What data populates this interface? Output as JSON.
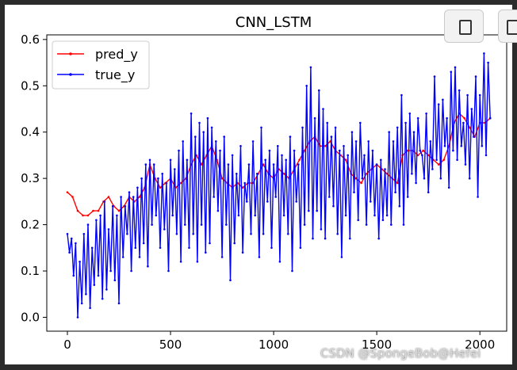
{
  "watermark": "CSDN @SpongeBob@Hefei",
  "chart_data": {
    "type": "line",
    "title": "CNN_LSTM",
    "xlabel": "",
    "ylabel": "",
    "xlim": [
      -100,
      2130
    ],
    "ylim": [
      -0.03,
      0.61
    ],
    "xticks": [
      0,
      500,
      1000,
      1500,
      2000
    ],
    "yticks": [
      0.0,
      0.1,
      0.2,
      0.3,
      0.4,
      0.5,
      0.6
    ],
    "grid": false,
    "legend": "top-left",
    "series": [
      {
        "name": "pred_y",
        "color": "#ff0000",
        "x": [
          0,
          25,
          50,
          75,
          100,
          125,
          150,
          175,
          200,
          225,
          250,
          275,
          300,
          325,
          350,
          375,
          400,
          425,
          450,
          475,
          500,
          525,
          550,
          575,
          600,
          625,
          650,
          675,
          700,
          725,
          750,
          775,
          800,
          825,
          850,
          875,
          900,
          925,
          950,
          975,
          1000,
          1025,
          1050,
          1075,
          1100,
          1125,
          1150,
          1175,
          1200,
          1225,
          1250,
          1275,
          1300,
          1325,
          1350,
          1375,
          1400,
          1425,
          1450,
          1475,
          1500,
          1525,
          1550,
          1575,
          1600,
          1625,
          1650,
          1675,
          1700,
          1725,
          1750,
          1775,
          1800,
          1825,
          1850,
          1875,
          1900,
          1925,
          1950,
          1975,
          2000,
          2025,
          2050
        ],
        "values": [
          0.27,
          0.26,
          0.23,
          0.22,
          0.22,
          0.23,
          0.23,
          0.25,
          0.26,
          0.24,
          0.23,
          0.24,
          0.26,
          0.25,
          0.26,
          0.28,
          0.33,
          0.3,
          0.28,
          0.29,
          0.3,
          0.28,
          0.29,
          0.3,
          0.33,
          0.35,
          0.33,
          0.35,
          0.37,
          0.34,
          0.3,
          0.29,
          0.28,
          0.29,
          0.28,
          0.29,
          0.29,
          0.31,
          0.33,
          0.31,
          0.3,
          0.32,
          0.31,
          0.3,
          0.32,
          0.34,
          0.36,
          0.38,
          0.39,
          0.37,
          0.37,
          0.38,
          0.36,
          0.35,
          0.34,
          0.31,
          0.3,
          0.29,
          0.31,
          0.32,
          0.33,
          0.32,
          0.31,
          0.3,
          0.29,
          0.35,
          0.36,
          0.36,
          0.35,
          0.36,
          0.35,
          0.34,
          0.33,
          0.34,
          0.37,
          0.42,
          0.44,
          0.43,
          0.41,
          0.39,
          0.42,
          0.42,
          0.43
        ]
      },
      {
        "name": "true_y",
        "color": "#0000ff",
        "x": [
          0,
          10,
          20,
          30,
          40,
          50,
          60,
          70,
          80,
          90,
          100,
          110,
          120,
          130,
          140,
          150,
          160,
          170,
          180,
          190,
          200,
          210,
          220,
          230,
          240,
          250,
          260,
          270,
          280,
          290,
          300,
          310,
          320,
          330,
          340,
          350,
          360,
          370,
          380,
          390,
          400,
          410,
          420,
          430,
          440,
          450,
          460,
          470,
          480,
          490,
          500,
          510,
          520,
          530,
          540,
          550,
          560,
          570,
          580,
          590,
          600,
          610,
          620,
          630,
          640,
          650,
          660,
          670,
          680,
          690,
          700,
          710,
          720,
          730,
          740,
          750,
          760,
          770,
          780,
          790,
          800,
          810,
          820,
          830,
          840,
          850,
          860,
          870,
          880,
          890,
          900,
          910,
          920,
          930,
          940,
          950,
          960,
          970,
          980,
          990,
          1000,
          1010,
          1020,
          1030,
          1040,
          1050,
          1060,
          1070,
          1080,
          1090,
          1100,
          1110,
          1120,
          1130,
          1140,
          1150,
          1160,
          1170,
          1180,
          1190,
          1200,
          1210,
          1220,
          1230,
          1240,
          1250,
          1260,
          1270,
          1280,
          1290,
          1300,
          1310,
          1320,
          1330,
          1340,
          1350,
          1360,
          1370,
          1380,
          1390,
          1400,
          1410,
          1420,
          1430,
          1440,
          1450,
          1460,
          1470,
          1480,
          1490,
          1500,
          1510,
          1520,
          1530,
          1540,
          1550,
          1560,
          1570,
          1580,
          1590,
          1600,
          1610,
          1620,
          1630,
          1640,
          1650,
          1660,
          1670,
          1680,
          1690,
          1700,
          1710,
          1720,
          1730,
          1740,
          1750,
          1760,
          1770,
          1780,
          1790,
          1800,
          1810,
          1820,
          1830,
          1840,
          1850,
          1860,
          1870,
          1880,
          1890,
          1900,
          1910,
          1920,
          1930,
          1940,
          1950,
          1960,
          1970,
          1980,
          1990,
          2000,
          2010,
          2020,
          2030,
          2040,
          2050
        ],
        "values": [
          0.18,
          0.14,
          0.17,
          0.09,
          0.16,
          0.0,
          0.12,
          0.03,
          0.18,
          0.05,
          0.2,
          0.02,
          0.15,
          0.07,
          0.21,
          0.09,
          0.22,
          0.04,
          0.25,
          0.06,
          0.19,
          0.1,
          0.24,
          0.08,
          0.22,
          0.03,
          0.26,
          0.13,
          0.24,
          0.18,
          0.27,
          0.1,
          0.26,
          0.15,
          0.28,
          0.13,
          0.3,
          0.16,
          0.33,
          0.11,
          0.34,
          0.2,
          0.33,
          0.22,
          0.3,
          0.15,
          0.31,
          0.19,
          0.29,
          0.1,
          0.34,
          0.22,
          0.32,
          0.18,
          0.36,
          0.12,
          0.38,
          0.2,
          0.34,
          0.15,
          0.44,
          0.18,
          0.39,
          0.12,
          0.42,
          0.2,
          0.4,
          0.14,
          0.43,
          0.16,
          0.41,
          0.26,
          0.38,
          0.23,
          0.36,
          0.13,
          0.39,
          0.2,
          0.33,
          0.08,
          0.35,
          0.16,
          0.31,
          0.22,
          0.37,
          0.14,
          0.29,
          0.25,
          0.33,
          0.18,
          0.38,
          0.22,
          0.31,
          0.13,
          0.41,
          0.18,
          0.34,
          0.25,
          0.36,
          0.15,
          0.33,
          0.26,
          0.37,
          0.12,
          0.35,
          0.22,
          0.34,
          0.18,
          0.39,
          0.1,
          0.36,
          0.25,
          0.33,
          0.15,
          0.41,
          0.2,
          0.5,
          0.23,
          0.54,
          0.17,
          0.43,
          0.23,
          0.49,
          0.19,
          0.45,
          0.17,
          0.42,
          0.26,
          0.39,
          0.24,
          0.41,
          0.18,
          0.36,
          0.13,
          0.37,
          0.22,
          0.35,
          0.17,
          0.4,
          0.27,
          0.38,
          0.21,
          0.42,
          0.3,
          0.35,
          0.2,
          0.38,
          0.25,
          0.36,
          0.22,
          0.33,
          0.17,
          0.34,
          0.21,
          0.32,
          0.22,
          0.4,
          0.2,
          0.38,
          0.27,
          0.41,
          0.24,
          0.48,
          0.2,
          0.42,
          0.26,
          0.44,
          0.31,
          0.4,
          0.29,
          0.43,
          0.36,
          0.35,
          0.3,
          0.44,
          0.27,
          0.38,
          0.32,
          0.52,
          0.34,
          0.46,
          0.3,
          0.47,
          0.37,
          0.43,
          0.28,
          0.53,
          0.36,
          0.54,
          0.34,
          0.49,
          0.37,
          0.42,
          0.33,
          0.48,
          0.3,
          0.45,
          0.39,
          0.52,
          0.26,
          0.48,
          0.37,
          0.57,
          0.35,
          0.55,
          0.43
        ]
      }
    ]
  }
}
